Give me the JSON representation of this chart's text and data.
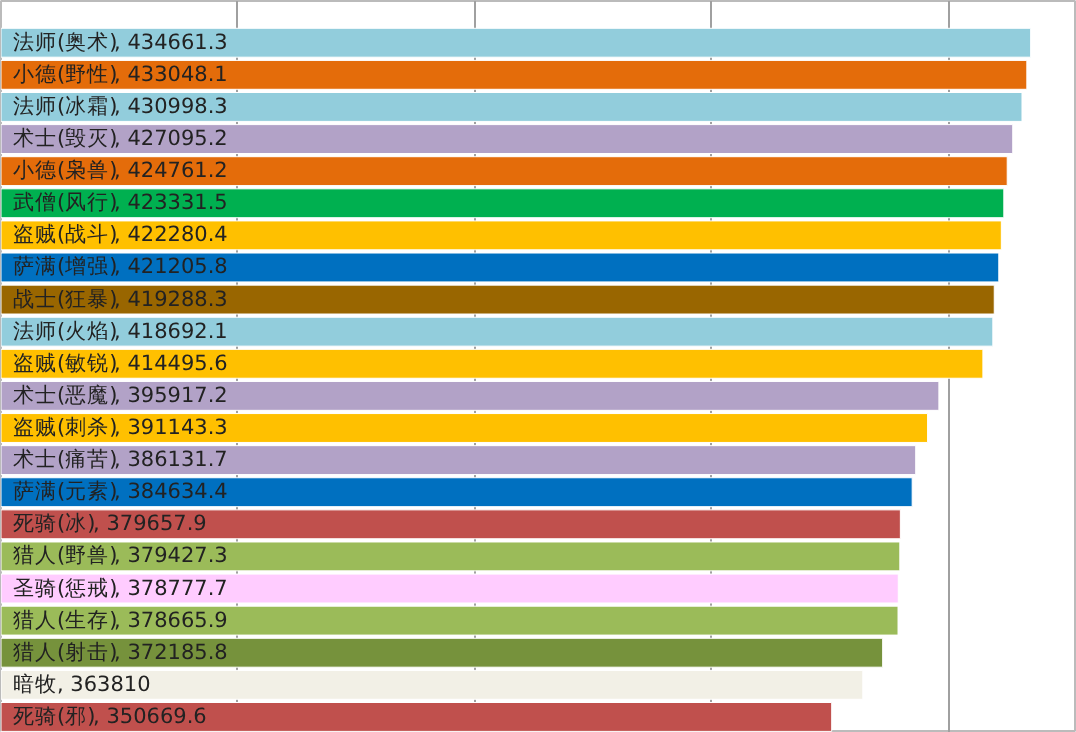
{
  "chart_data": {
    "type": "bar",
    "orientation": "horizontal",
    "value_labels": [
      ", 434661.3",
      ", 433048.1",
      ", 430998.3",
      ", 427095.2",
      ", 424761.2",
      ", 423331.5",
      ", 422280.4",
      ", 421205.8",
      ", 419288.3",
      ", 418692.1",
      ", 414495.6",
      ", 395917.2",
      ", 391143.3",
      ", 386131.7",
      ", 384634.4",
      ", 379657.9",
      ", 379427.3",
      ", 378777.7",
      ", 378665.9",
      ", 372185.8",
      ", 363810",
      ", 350669.6"
    ],
    "grid": "x",
    "tick_labels": false,
    "categories": [
      "法师(奥术)",
      "小德(野性)",
      "法师(冰霜)",
      "术士(毁灭)",
      "小德(枭兽)",
      "武僧(风行)",
      "盗贼(战斗)",
      "萨满(增强)",
      "战士(狂暴)",
      "法师(火焰)",
      "盗贼(敏锐)",
      "术士(恶魔)",
      "盗贼(刺杀)",
      "术士(痛苦)",
      "萨满(元素)",
      "死骑(冰)",
      "猎人(野兽)",
      "圣骑(惩戒)",
      "猎人(生存)",
      "猎人(射击)",
      "暗牧",
      "死骑(邪)"
    ],
    "values": [
      434661.3,
      433048.1,
      430998.3,
      427095.2,
      424761.2,
      423331.5,
      422280.4,
      421205.8,
      419288.3,
      418692.1,
      414495.6,
      395917.2,
      391143.3,
      386131.7,
      384634.4,
      379657.9,
      379427.3,
      378777.7,
      378665.9,
      372185.8,
      363810,
      350669.6
    ],
    "colors": [
      "#92cddc",
      "#e46c0a",
      "#92cddc",
      "#b2a2c7",
      "#e46c0a",
      "#00b050",
      "#ffc000",
      "#0070c0",
      "#996600",
      "#92cddc",
      "#ffc000",
      "#b2a2c7",
      "#ffc000",
      "#b2a2c7",
      "#0070c0",
      "#c0504d",
      "#9bbb59",
      "#ffccff",
      "#9bbb59",
      "#76923c",
      "#f2f0e6",
      "#c0504d"
    ]
  }
}
